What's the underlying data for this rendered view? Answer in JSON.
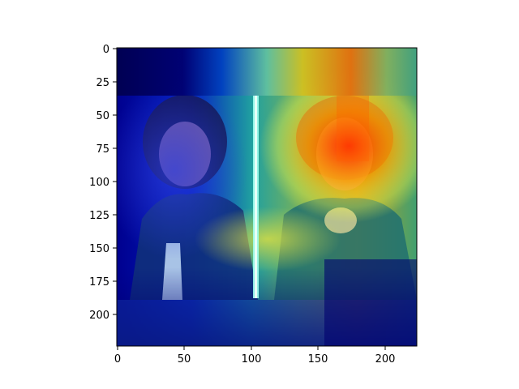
{
  "figure": {
    "description_kind": "heatmap overlay on photograph",
    "colormap": [
      "#00007f",
      "#0000ff",
      "#00ffff",
      "#ffff00",
      "#ff0000",
      "#7f0000"
    ],
    "x_ticks": [
      "0",
      "50",
      "100",
      "150",
      "200"
    ],
    "y_ticks": [
      "0",
      "25",
      "50",
      "75",
      "100",
      "125",
      "150",
      "175",
      "200"
    ],
    "x_range": [
      0,
      224
    ],
    "y_range": [
      0,
      224
    ]
  }
}
